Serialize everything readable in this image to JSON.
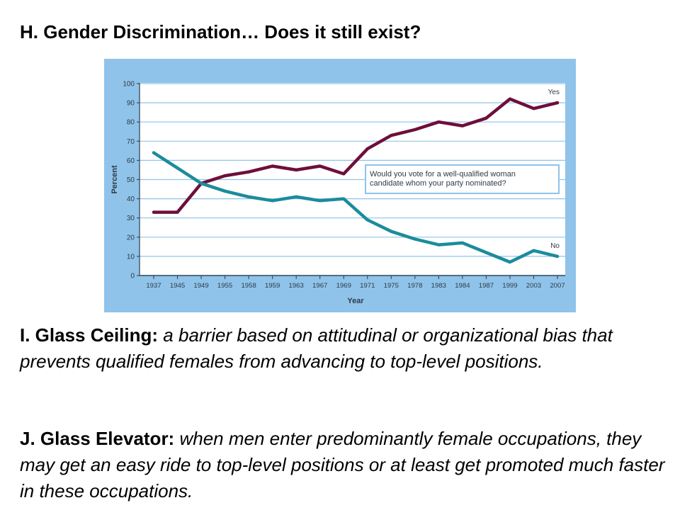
{
  "slide": {
    "heading": "H. Gender Discrimination… Does it still exist?",
    "definitions": [
      {
        "term": "I. Glass Ceiling:",
        "text": "a barrier based on attitudinal or organizational bias that prevents qualified females from advancing to top-level positions."
      },
      {
        "term": "J. Glass Elevator:",
        "text": "when men enter predominantly female occupations, they may get an easy ride to top-level positions or at least get promoted much faster in these occupations."
      }
    ]
  },
  "chart_data": {
    "type": "line",
    "title": "",
    "xlabel": "Year",
    "ylabel": "Percent",
    "ylim": [
      0,
      100
    ],
    "yticks": [
      0,
      10,
      20,
      30,
      40,
      50,
      60,
      70,
      80,
      90,
      100
    ],
    "grid": true,
    "categories": [
      "1937",
      "1945",
      "1949",
      "1955",
      "1958",
      "1959",
      "1963",
      "1967",
      "1969",
      "1971",
      "1975",
      "1978",
      "1983",
      "1984",
      "1987",
      "1999",
      "2003",
      "2007"
    ],
    "series": [
      {
        "name": "Yes",
        "color": "#6e0f3a",
        "values": [
          33,
          33,
          48,
          52,
          54,
          57,
          55,
          57,
          53,
          66,
          73,
          76,
          80,
          78,
          82,
          92,
          87,
          90
        ]
      },
      {
        "name": "No",
        "color": "#1b8c9c",
        "values": [
          64,
          56,
          48,
          44,
          41,
          39,
          41,
          39,
          40,
          29,
          23,
          19,
          16,
          17,
          12,
          7,
          13,
          10
        ]
      }
    ],
    "annotation": "Would you vote for a well-qualified woman candidate whom your party nominated?",
    "colors": {
      "panel": "#8fc3ea",
      "plot": "#ffffff",
      "grid": "#8fc3ea",
      "axis": "#2f3b46",
      "text": "#2f3b46"
    }
  }
}
